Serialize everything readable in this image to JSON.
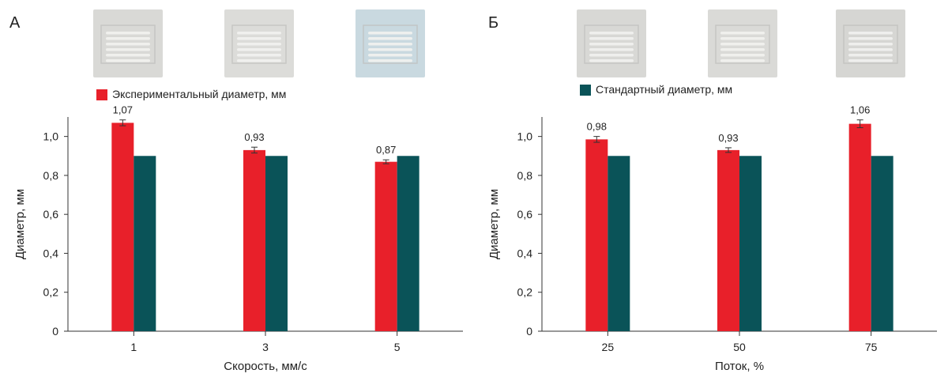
{
  "colors": {
    "experimental": "#e8202a",
    "standard": "#0a5358",
    "axis": "#333333",
    "error_bar": "#333333"
  },
  "chart_data": [
    {
      "type": "bar",
      "panel_label": "А",
      "legend": {
        "series": "experimental",
        "label": "Экспериментальный диаметр, мм"
      },
      "categories": [
        "1",
        "3",
        "5"
      ],
      "series": [
        {
          "name": "Экспериментальный диаметр, мм",
          "color_key": "experimental",
          "values": [
            1.07,
            0.93,
            0.87
          ],
          "errors": [
            0.015,
            0.015,
            0.01
          ],
          "data_labels": [
            "1,07",
            "0,93",
            "0,87"
          ]
        },
        {
          "name": "Стандартный диаметр, мм",
          "color_key": "standard",
          "values": [
            0.9,
            0.9,
            0.9
          ]
        }
      ],
      "xlabel": "Скорость, мм/с",
      "ylabel": "Диаметр, мм",
      "ylim": [
        0,
        1.1
      ],
      "yticks": [
        0,
        0.2,
        0.4,
        0.6,
        0.8,
        1.0
      ],
      "ytick_labels": [
        "0",
        "0,2",
        "0,4",
        "0,6",
        "0,8",
        "1,0"
      ],
      "grid": false,
      "thumbnails": 3
    },
    {
      "type": "bar",
      "panel_label": "Б",
      "legend": {
        "series": "standard",
        "label": "Стандартный диаметр, мм"
      },
      "categories": [
        "25",
        "50",
        "75"
      ],
      "series": [
        {
          "name": "Экспериментальный диаметр, мм",
          "color_key": "experimental",
          "values": [
            0.985,
            0.93,
            1.065
          ],
          "errors": [
            0.015,
            0.012,
            0.02
          ],
          "data_labels": [
            "0,98",
            "0,93",
            "1,06"
          ]
        },
        {
          "name": "Стандартный диаметр, мм",
          "color_key": "standard",
          "values": [
            0.9,
            0.9,
            0.9
          ]
        }
      ],
      "xlabel": "Поток, %",
      "ylabel": "Диаметр, мм",
      "ylim": [
        0,
        1.1
      ],
      "yticks": [
        0,
        0.2,
        0.4,
        0.6,
        0.8,
        1.0
      ],
      "ytick_labels": [
        "0",
        "0,2",
        "0,4",
        "0,6",
        "0,8",
        "1,0"
      ],
      "grid": false,
      "thumbnails": 3
    }
  ]
}
